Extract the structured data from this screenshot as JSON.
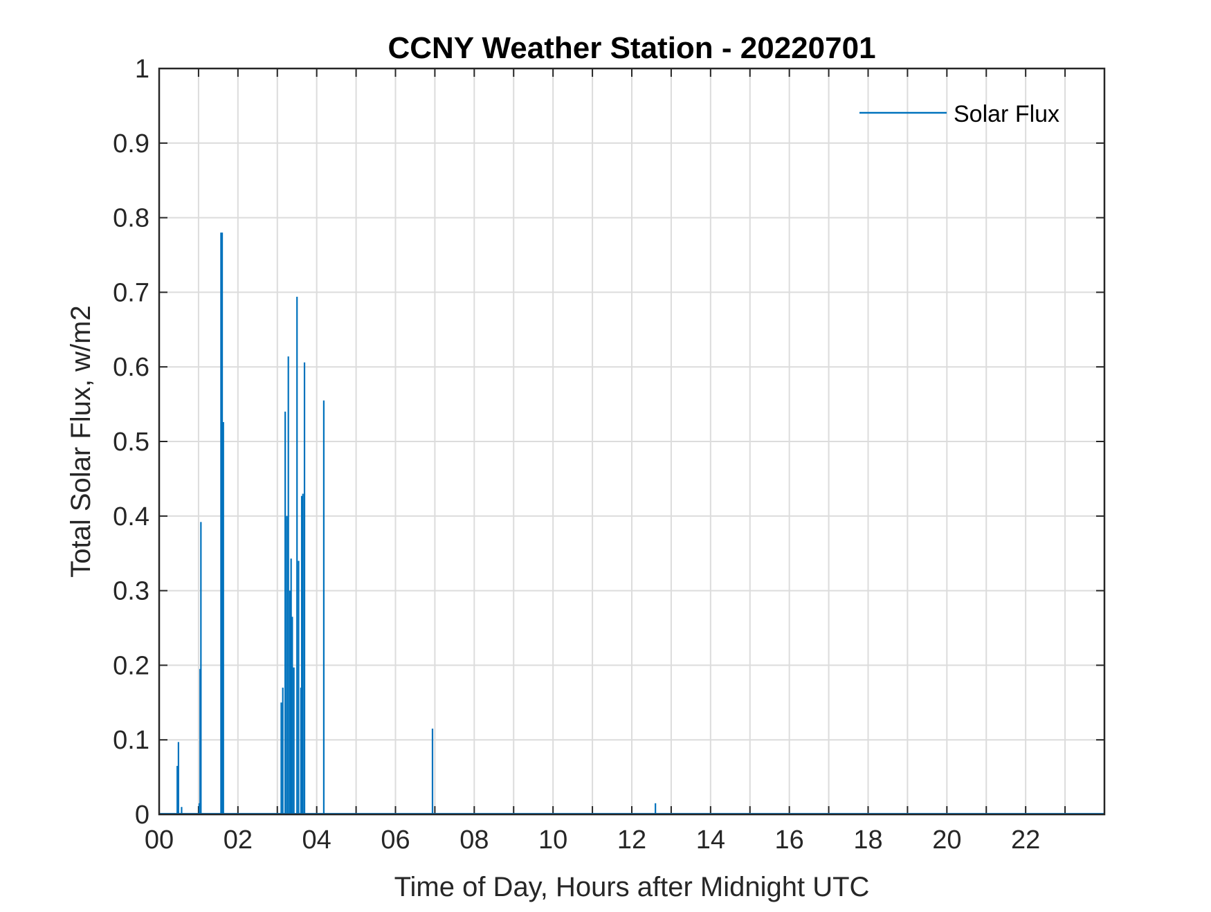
{
  "chart_data": {
    "type": "line",
    "title": "CCNY Weather Station - 20220701",
    "xlabel": "Time of Day, Hours after Midnight UTC",
    "ylabel": "Total Solar Flux, w/m2",
    "xlim": [
      0,
      24
    ],
    "ylim": [
      0,
      1
    ],
    "x_ticks": [
      0,
      2,
      4,
      6,
      8,
      10,
      12,
      14,
      16,
      18,
      20,
      22
    ],
    "x_tick_labels": [
      "00",
      "02",
      "04",
      "06",
      "08",
      "10",
      "12",
      "14",
      "16",
      "18",
      "20",
      "22"
    ],
    "x_grid_step": 1,
    "y_ticks": [
      0,
      0.1,
      0.2,
      0.3,
      0.4,
      0.5,
      0.6,
      0.7,
      0.8,
      0.9,
      1
    ],
    "y_tick_labels": [
      "0",
      "0.1",
      "0.2",
      "0.3",
      "0.4",
      "0.5",
      "0.6",
      "0.7",
      "0.8",
      "0.9",
      "1"
    ],
    "grid": true,
    "legend": {
      "position": "top-right",
      "entries": [
        "Solar Flux"
      ]
    },
    "series": [
      {
        "name": "Solar Flux",
        "color": "#0072BD",
        "spikes": [
          [
            0.46,
            0.065
          ],
          [
            0.49,
            0.097
          ],
          [
            0.57,
            0.01
          ],
          [
            1.02,
            0.015
          ],
          [
            1.04,
            0.195
          ],
          [
            1.06,
            0.392
          ],
          [
            1.57,
            0.78
          ],
          [
            1.6,
            0.78
          ],
          [
            1.63,
            0.526
          ],
          [
            3.1,
            0.15
          ],
          [
            3.14,
            0.17
          ],
          [
            3.2,
            0.54
          ],
          [
            3.24,
            0.4
          ],
          [
            3.28,
            0.614
          ],
          [
            3.32,
            0.3
          ],
          [
            3.35,
            0.343
          ],
          [
            3.38,
            0.265
          ],
          [
            3.42,
            0.197
          ],
          [
            3.5,
            0.694
          ],
          [
            3.54,
            0.34
          ],
          [
            3.6,
            0.17
          ],
          [
            3.62,
            0.427
          ],
          [
            3.65,
            0.43
          ],
          [
            3.69,
            0.606
          ],
          [
            4.18,
            0.555
          ],
          [
            6.94,
            0.115
          ],
          [
            12.6,
            0.015
          ]
        ]
      }
    ]
  }
}
